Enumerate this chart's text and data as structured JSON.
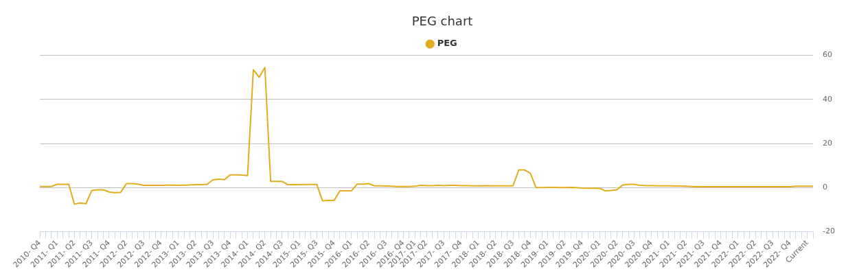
{
  "chart_data": {
    "type": "line",
    "title": "PEG chart",
    "categories": [
      "2010- Q4",
      null,
      null,
      "2011- Q1",
      null,
      null,
      "2011- Q2",
      null,
      null,
      "2011- Q3",
      null,
      null,
      "2011- Q4",
      null,
      null,
      "2012- Q2",
      null,
      null,
      "2012- Q3",
      null,
      null,
      "2012- Q4",
      null,
      null,
      "2013- Q1",
      null,
      null,
      "2013- Q2",
      null,
      null,
      "2013- Q3",
      null,
      null,
      "2013- Q4",
      null,
      null,
      "2014- Q1",
      null,
      null,
      "2014- Q2",
      null,
      null,
      "2014- Q3",
      null,
      null,
      "2015- Q1",
      null,
      null,
      "2015- Q3",
      null,
      null,
      "2015- Q4",
      null,
      null,
      "2016- Q1",
      null,
      null,
      "2016- Q2",
      null,
      null,
      "2016- Q3",
      null,
      null,
      "2016- Q4",
      null,
      "2017- Q1",
      null,
      "2017- Q2",
      null,
      null,
      "2017- Q3",
      null,
      null,
      "2017- Q4",
      null,
      null,
      "2018- Q1",
      null,
      null,
      "2018- Q2",
      null,
      null,
      "2018- Q3",
      null,
      null,
      "2018- Q4",
      null,
      null,
      "2019- Q1",
      null,
      null,
      "2019- Q2",
      null,
      null,
      "2019- Q4",
      null,
      null,
      "2020- Q1",
      null,
      null,
      "2020- Q2",
      null,
      null,
      "2020- Q3",
      null,
      null,
      "2020- Q4",
      null,
      null,
      "2021- Q1",
      null,
      null,
      "2021- Q2",
      null,
      null,
      "2021- Q3",
      null,
      null,
      "2021- Q4",
      null,
      null,
      "2022- Q1",
      null,
      null,
      "2022- Q2",
      null,
      null,
      "2022- Q3",
      null,
      null,
      "2022- Q4",
      null,
      null,
      "Current",
      null
    ],
    "series": [
      {
        "name": "PEG",
        "color": "#e1ad1c",
        "values": [
          0.5,
          0.5,
          0.5,
          1.5,
          1.5,
          1.5,
          -7.5,
          -7,
          -7.3,
          -1.3,
          -1,
          -1,
          -2,
          -2.3,
          -2.2,
          1.8,
          1.8,
          1.6,
          1,
          1,
          1,
          1,
          1.1,
          1.1,
          1,
          1.1,
          1.2,
          1.3,
          1.3,
          1.5,
          3.5,
          3.8,
          3.6,
          5.8,
          5.8,
          5.7,
          5.5,
          53.5,
          50,
          54.5,
          2.8,
          2.8,
          2.8,
          1.3,
          1.3,
          1.3,
          1.4,
          1.4,
          1.4,
          -6,
          -5.8,
          -5.8,
          -1.5,
          -1.5,
          -1.5,
          1.6,
          1.6,
          1.8,
          0.8,
          0.8,
          0.7,
          0.6,
          0.5,
          0.5,
          0.5,
          0.6,
          1,
          0.9,
          0.9,
          1,
          0.9,
          1,
          1,
          0.9,
          0.9,
          0.8,
          0.8,
          0.9,
          0.8,
          0.8,
          0.8,
          0.8,
          0.8,
          8,
          8,
          6.5,
          0,
          0,
          0.1,
          0.1,
          0,
          0,
          0.1,
          0,
          -0.2,
          -0.3,
          -0.3,
          -0.3,
          -1.5,
          -1.3,
          -1,
          1.2,
          1.5,
          1.5,
          1,
          0.9,
          0.9,
          0.8,
          0.8,
          0.8,
          0.7,
          0.7,
          0.6,
          0.5,
          0.4,
          0.4,
          0.4,
          0.4,
          0.4,
          0.4,
          0.4,
          0.4,
          0.4,
          0.4,
          0.4,
          0.4,
          0.4,
          0.4,
          0.4,
          0.4,
          0.4,
          0.6,
          0.6,
          0.6,
          0.6
        ]
      }
    ],
    "ylim": [
      -20,
      60
    ],
    "yticks": [
      -20,
      0,
      20,
      40,
      60
    ],
    "grid": "y",
    "legend": "top",
    "marker": "none",
    "line_style": "solid"
  }
}
